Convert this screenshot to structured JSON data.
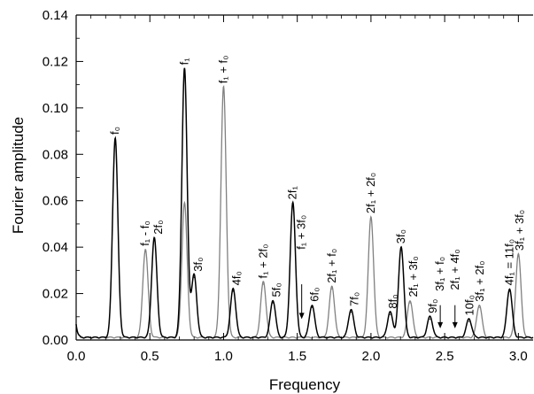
{
  "chart_data": {
    "type": "line",
    "xlabel": "Frequency",
    "ylabel": "Fourier amplitude",
    "xlim": [
      0.0,
      3.1
    ],
    "ylim": [
      0.0,
      0.14
    ],
    "x_ticks": [
      "0.0",
      "0.5",
      "1.0",
      "1.5",
      "2.0",
      "2.5",
      "3.0"
    ],
    "y_ticks": [
      "0.00",
      "0.02",
      "0.04",
      "0.06",
      "0.08",
      "0.10",
      "0.12",
      "0.14"
    ],
    "grid": false,
    "series": [
      {
        "color": "#000000",
        "peaks": [
          {
            "x": 0.265,
            "y": 0.086
          },
          {
            "x": 0.53,
            "y": 0.043
          },
          {
            "x": 0.735,
            "y": 0.116
          },
          {
            "x": 0.8,
            "y": 0.027
          },
          {
            "x": 1.065,
            "y": 0.021
          },
          {
            "x": 1.335,
            "y": 0.016
          },
          {
            "x": 1.47,
            "y": 0.058
          },
          {
            "x": 1.6,
            "y": 0.014
          },
          {
            "x": 1.865,
            "y": 0.012
          },
          {
            "x": 2.13,
            "y": 0.011
          },
          {
            "x": 2.205,
            "y": 0.039
          },
          {
            "x": 2.4,
            "y": 0.009
          },
          {
            "x": 2.665,
            "y": 0.008
          },
          {
            "x": 2.94,
            "y": 0.021
          }
        ]
      },
      {
        "color": "#808080",
        "peaks": [
          {
            "x": 0.47,
            "y": 0.038
          },
          {
            "x": 0.735,
            "y": 0.058
          },
          {
            "x": 1.0,
            "y": 0.108
          },
          {
            "x": 1.27,
            "y": 0.024
          },
          {
            "x": 1.735,
            "y": 0.022
          },
          {
            "x": 2.0,
            "y": 0.052
          },
          {
            "x": 2.265,
            "y": 0.016
          },
          {
            "x": 2.735,
            "y": 0.014
          },
          {
            "x": 3.0,
            "y": 0.036
          }
        ]
      }
    ],
    "annotations": [
      {
        "label": "f₀",
        "x": 0.265,
        "y": 0.0885
      },
      {
        "label": "f₁ - f₀",
        "x": 0.47,
        "y": 0.0405
      },
      {
        "label": "2f₀",
        "x": 0.56,
        "y": 0.0455
      },
      {
        "label": "f₁",
        "x": 0.735,
        "y": 0.1185
      },
      {
        "label": "3f₀",
        "x": 0.83,
        "y": 0.0295
      },
      {
        "label": "f₁ + f₀",
        "x": 1.0,
        "y": 0.1105
      },
      {
        "label": "4f₀",
        "x": 1.09,
        "y": 0.0235
      },
      {
        "label": "f₁ + 2f₀",
        "x": 1.27,
        "y": 0.0265
      },
      {
        "label": "5f₀",
        "x": 1.36,
        "y": 0.0185
      },
      {
        "label": "2f₁",
        "x": 1.47,
        "y": 0.0605
      },
      {
        "label": "f₁ + 3f₀",
        "x": 1.53,
        "y": 0.039
      },
      {
        "label": "6f₀",
        "x": 1.62,
        "y": 0.0165
      },
      {
        "label": "2f₁ + f₀",
        "x": 1.735,
        "y": 0.0245
      },
      {
        "label": "7f₀",
        "x": 1.89,
        "y": 0.0145
      },
      {
        "label": "2f₁ + 2f₀",
        "x": 2.0,
        "y": 0.0545
      },
      {
        "label": "8f₀",
        "x": 2.15,
        "y": 0.0135
      },
      {
        "label": "3f₀",
        "x": 2.205,
        "y": 0.0415
      },
      {
        "label": "2f₁ + 3f₀",
        "x": 2.29,
        "y": 0.0185
      },
      {
        "label": "9f₀",
        "x": 2.42,
        "y": 0.0115
      },
      {
        "label": "3f₁ + f₀",
        "x": 2.47,
        "y": 0.021
      },
      {
        "label": "2f₁ + 4f₀",
        "x": 2.57,
        "y": 0.0215
      },
      {
        "label": "10f₀",
        "x": 2.67,
        "y": 0.0105
      },
      {
        "label": "3f₁ + 2f₀",
        "x": 2.74,
        "y": 0.0165
      },
      {
        "label": "4f₁ = 11f₀",
        "x": 2.94,
        "y": 0.0235
      },
      {
        "label": "3f₁ + 3f₀",
        "x": 3.01,
        "y": 0.0385
      }
    ],
    "arrows": [
      {
        "x": 1.53,
        "y_from": 0.024,
        "y_to": 0.009
      },
      {
        "x": 2.47,
        "y_from": 0.015,
        "y_to": 0.005
      },
      {
        "x": 2.57,
        "y_from": 0.015,
        "y_to": 0.005
      }
    ]
  }
}
